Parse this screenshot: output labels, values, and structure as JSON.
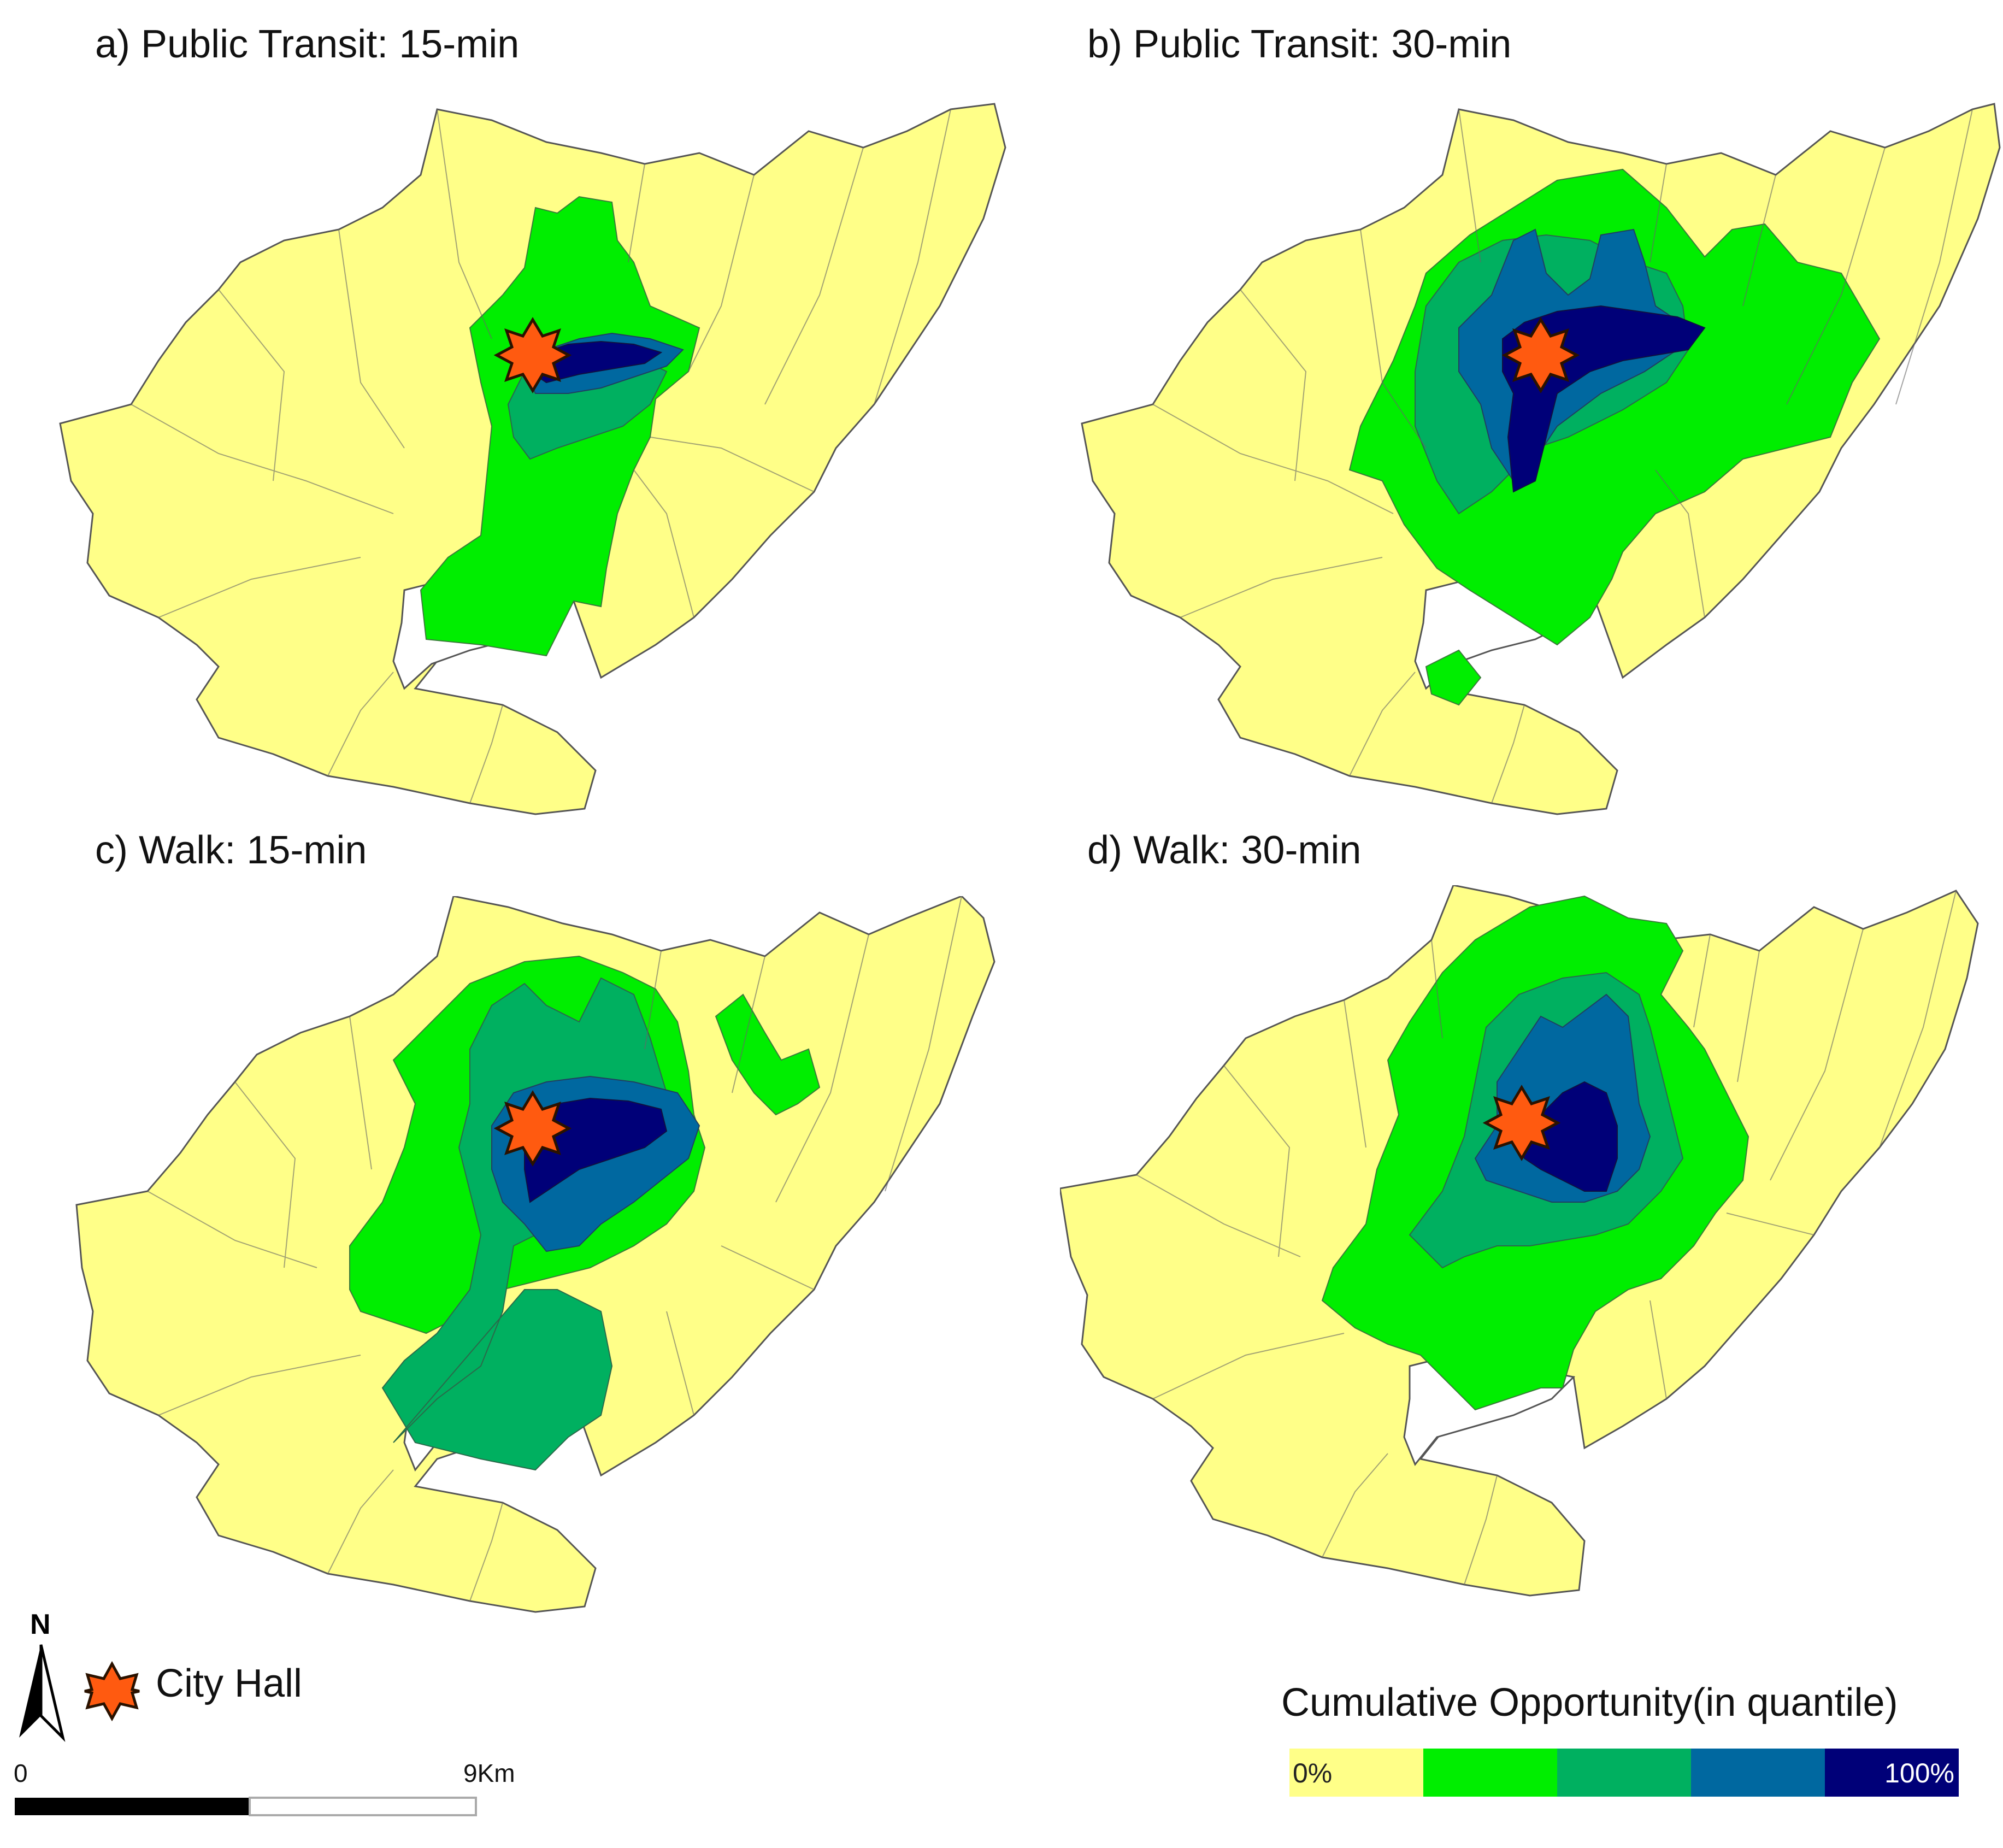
{
  "panels": {
    "a": {
      "title": "a) Public Transit: 15-min"
    },
    "b": {
      "title": "b) Public Transit: 30-min"
    },
    "c": {
      "title": "c) Walk: 15-min"
    },
    "d": {
      "title": "d) Walk: 30-min"
    }
  },
  "legend": {
    "marker_label": "City Hall",
    "marker_icon": "star-icon",
    "title": "Cumulative Opportunity(in quantile)",
    "low_label": "0%",
    "high_label": "100%",
    "colors": [
      "#FFFF88",
      "#00EE00",
      "#00B060",
      "#0068A0",
      "#000078"
    ]
  },
  "scale": {
    "start": "0",
    "end": "9Km"
  },
  "north_arrow": {
    "label": "N"
  }
}
